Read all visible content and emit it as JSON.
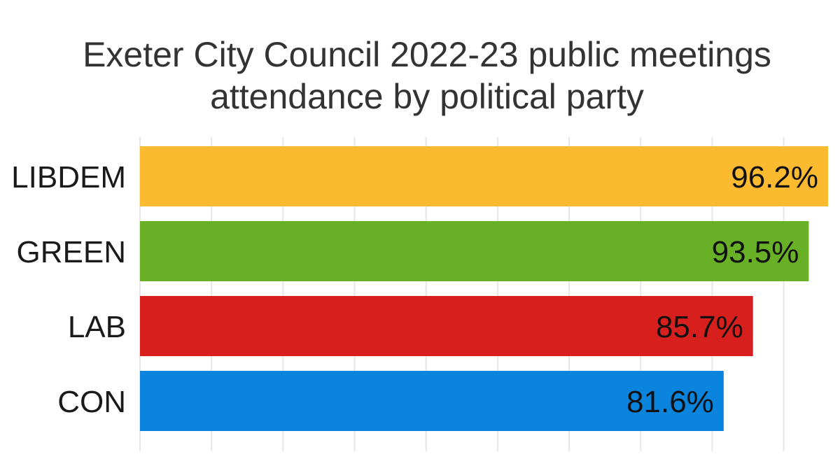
{
  "chart_data": {
    "type": "bar",
    "orientation": "horizontal",
    "title_lines": [
      "Exeter City Council 2022-23 public meetings",
      "attendance by political party"
    ],
    "categories": [
      "LIBDEM",
      "GREEN",
      "LAB",
      "CON"
    ],
    "values": [
      96.2,
      93.5,
      85.7,
      81.6
    ],
    "value_labels": [
      "96.2%",
      "93.5%",
      "85.7%",
      "81.6%"
    ],
    "colors": [
      "#fbba30",
      "#68b025",
      "#d7201e",
      "#0b84de"
    ],
    "xlim": [
      0,
      96.2
    ],
    "grid": true,
    "xlabel": "",
    "ylabel": ""
  }
}
